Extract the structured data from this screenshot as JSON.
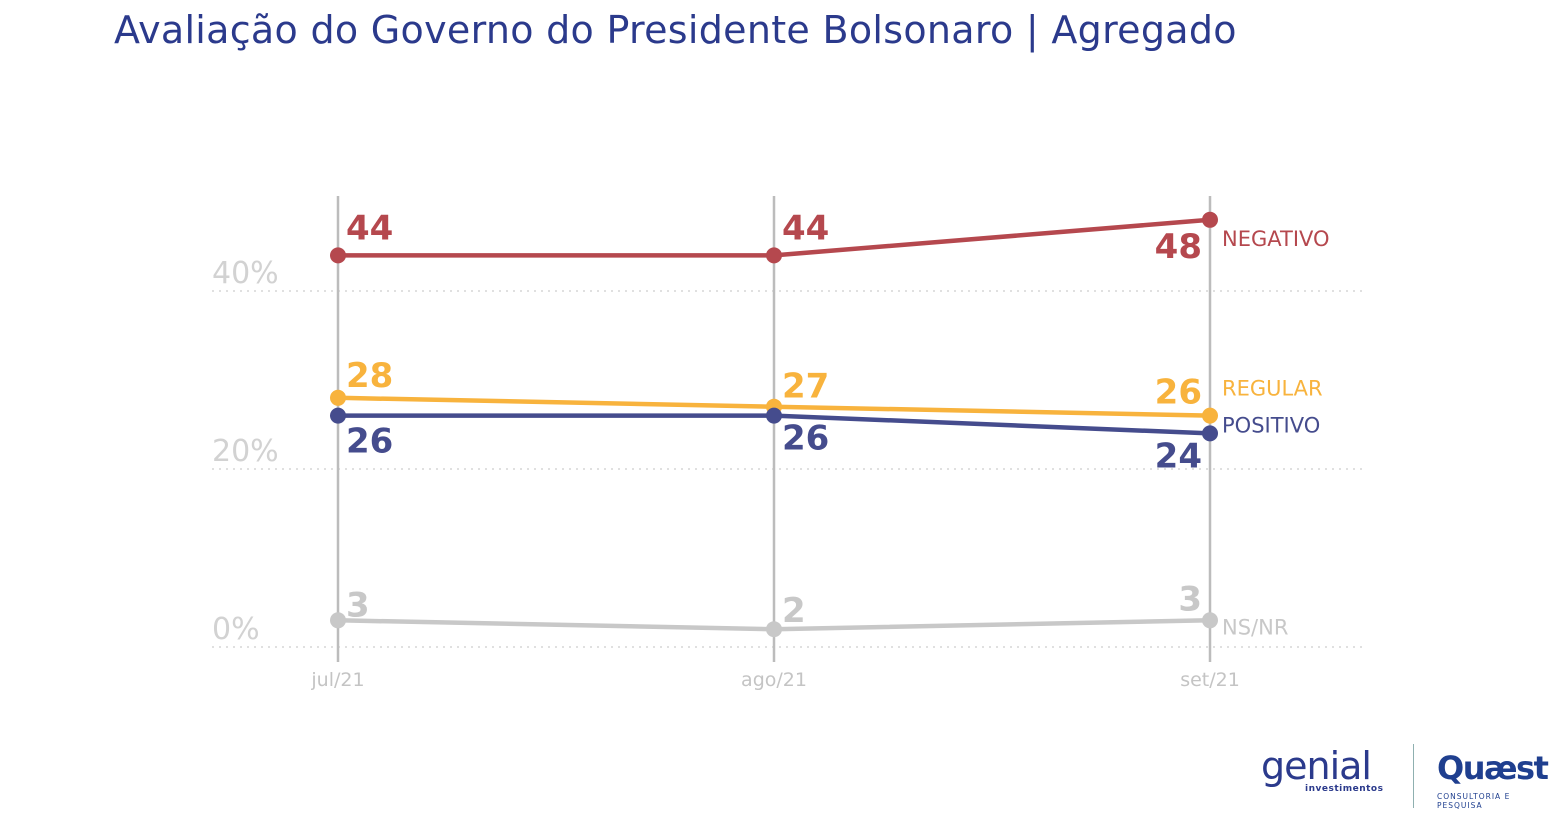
{
  "title": "Avaliação do Governo do Presidente Bolsonaro | Agregado",
  "chart_data": {
    "type": "line",
    "x": [
      "jul/21",
      "ago/21",
      "set/21"
    ],
    "y_ticks": [
      "0%",
      "20%",
      "40%"
    ],
    "y_tick_values": [
      0,
      20,
      40
    ],
    "ylim": [
      0,
      50
    ],
    "grid": true,
    "series": [
      {
        "name": "NEGATIVO",
        "values": [
          44,
          44,
          48
        ],
        "color": "#b5484e"
      },
      {
        "name": "REGULAR",
        "values": [
          28,
          27,
          26
        ],
        "color": "#f8b33d"
      },
      {
        "name": "POSITIVO",
        "values": [
          26,
          26,
          24
        ],
        "color": "#454c8d"
      },
      {
        "name": "NS/NR",
        "values": [
          3,
          2,
          3
        ],
        "color": "#c8c8c8"
      }
    ]
  },
  "logos": {
    "genial_text": "genial",
    "genial_sub": "investimentos",
    "quaest_text": "Quæst",
    "quaest_sub": "CONSULTORIA E PESQUISA"
  }
}
